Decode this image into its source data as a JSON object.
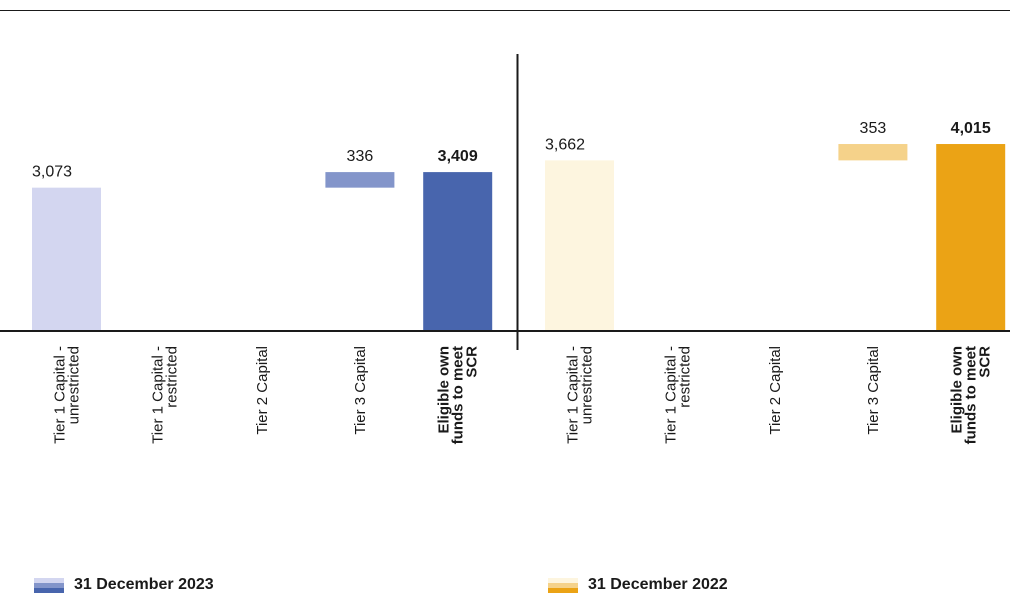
{
  "chart_data": {
    "type": "bar",
    "subtype": "waterfall",
    "grid": false,
    "legend_position": "bottom",
    "panels": [
      {
        "name": "31 December 2023",
        "categories": [
          "Tier 1 Capital - unrestricted",
          "Tier 1 Capital - restricted",
          "Tier 2 Capital",
          "Tier 3 Capital",
          "Eligible own funds to meet SCR"
        ],
        "values": [
          3073,
          0,
          0,
          336,
          3409
        ],
        "labels": [
          "3,073",
          "",
          "",
          "336",
          "3,409"
        ],
        "colors": [
          "#d3d6f0",
          "",
          "",
          "#8395ca",
          "#4865ad"
        ],
        "bold_total": true
      },
      {
        "name": "31 December 2022",
        "categories": [
          "Tier 1 Capital - unrestricted",
          "Tier 1 Capital - restricted",
          "Tier 2 Capital",
          "Tier 3 Capital",
          "Eligible own funds to meet SCR"
        ],
        "values": [
          3662,
          0,
          0,
          353,
          4015
        ],
        "labels": [
          "3,662",
          "",
          "",
          "353",
          "4,015"
        ],
        "colors": [
          "#fdf5df",
          "",
          "",
          "#f5d28a",
          "#eba315"
        ],
        "bold_total": true
      }
    ],
    "ylim": [
      0,
      4100
    ]
  },
  "legend": [
    {
      "label": "31 December 2023",
      "colors": [
        "#d3d6f0",
        "#8395ca",
        "#4865ad"
      ]
    },
    {
      "label": "31 December 2022",
      "colors": [
        "#fdf5df",
        "#f5d28a",
        "#eba315"
      ]
    }
  ]
}
